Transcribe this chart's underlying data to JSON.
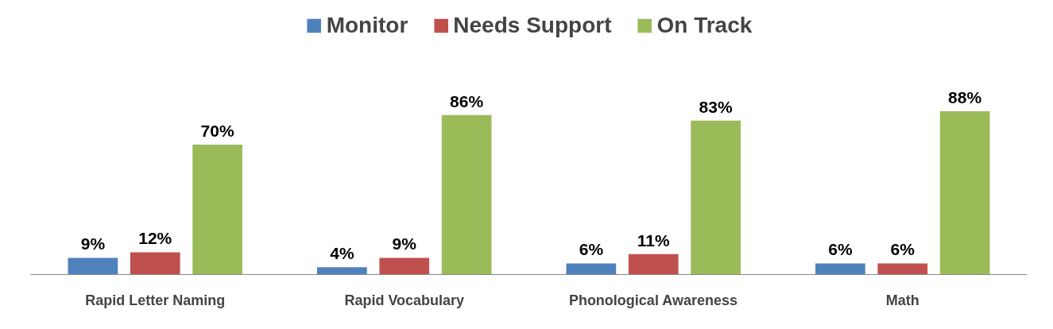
{
  "chart_data": {
    "type": "bar",
    "categories": [
      "Rapid Letter Naming",
      "Rapid Vocabulary",
      "Phonological Awareness",
      "Math"
    ],
    "series": [
      {
        "name": "Monitor",
        "color": "#4f81bd",
        "values": [
          9,
          4,
          6,
          6
        ],
        "value_labels": [
          "9%",
          "4%",
          "6%",
          "6%"
        ]
      },
      {
        "name": "Needs Support",
        "color": "#c0504d",
        "values": [
          12,
          9,
          11,
          6
        ],
        "value_labels": [
          "12%",
          "9%",
          "11%",
          "6%"
        ]
      },
      {
        "name": "On Track",
        "color": "#9bbb59",
        "values": [
          70,
          86,
          83,
          88
        ],
        "value_labels": [
          "70%",
          "86%",
          "83%",
          "88%"
        ]
      }
    ],
    "legend": "top"
  }
}
